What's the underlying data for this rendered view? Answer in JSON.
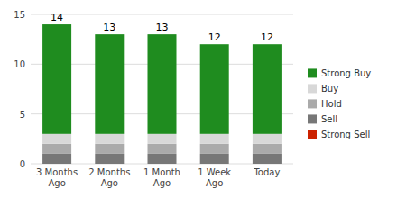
{
  "chart_data": {
    "type": "bar",
    "stacked": true,
    "grid": true,
    "legend": "right",
    "categories": [
      "3 Months\nAgo",
      "2 Months\nAgo",
      "1 Month\nAgo",
      "1 Week\nAgo",
      "Today"
    ],
    "series": [
      {
        "name": "Strong Sell",
        "color": "#cc2200",
        "values": [
          0,
          0,
          0,
          0,
          0
        ]
      },
      {
        "name": "Sell",
        "color": "#777777",
        "values": [
          1,
          1,
          1,
          1,
          1
        ]
      },
      {
        "name": "Hold",
        "color": "#aaaaaa",
        "values": [
          1,
          1,
          1,
          1,
          1
        ]
      },
      {
        "name": "Buy",
        "color": "#d8d8d8",
        "values": [
          1,
          1,
          1,
          1,
          1
        ]
      },
      {
        "name": "Strong Buy",
        "color": "#1f8c1f",
        "values": [
          11,
          10,
          10,
          9,
          9
        ]
      }
    ],
    "totals": [
      14,
      13,
      13,
      12,
      12
    ],
    "ylim": [
      0,
      15
    ],
    "yticks": [
      0,
      5,
      10,
      15
    ]
  }
}
